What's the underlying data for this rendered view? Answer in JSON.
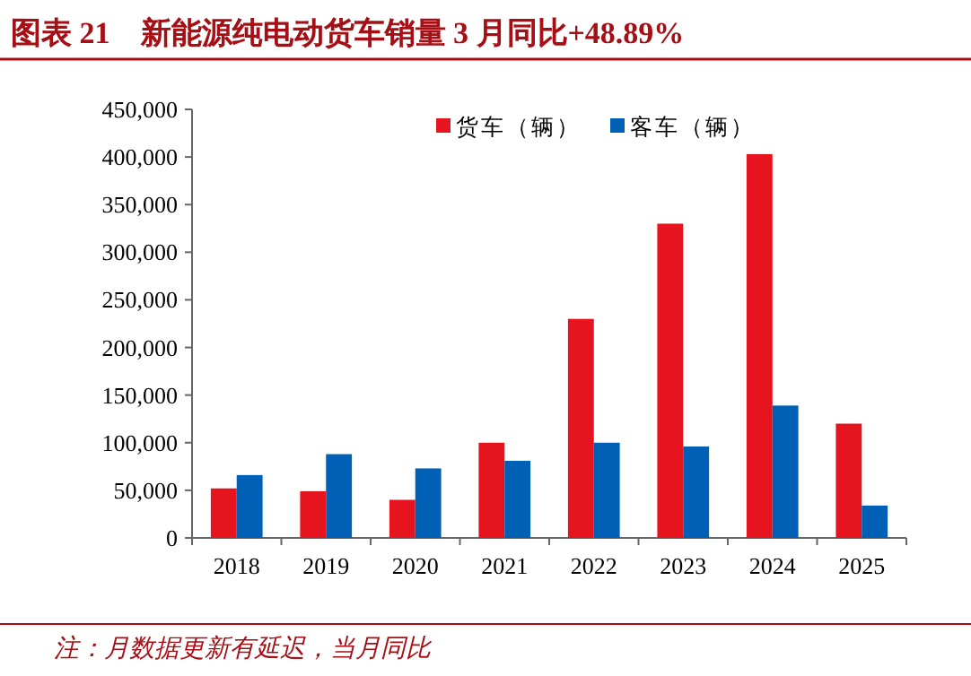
{
  "chart_data": {
    "type": "bar",
    "title": "图表 21　新能源纯电动货车销量 3 月同比+48.89%",
    "categories": [
      "2018",
      "2019",
      "2020",
      "2021",
      "2022",
      "2023",
      "2024",
      "2025"
    ],
    "series": [
      {
        "name": "货车（辆）",
        "color": "#e5141e",
        "values": [
          52000,
          49000,
          40000,
          100000,
          230000,
          330000,
          403000,
          120000
        ]
      },
      {
        "name": "客车（辆）",
        "color": "#0060b6",
        "values": [
          66000,
          88000,
          73000,
          81000,
          100000,
          96000,
          139000,
          34000
        ]
      }
    ],
    "ylim": [
      0,
      450000
    ],
    "yticks": [
      {
        "value": 0,
        "label": "0"
      },
      {
        "value": 50000,
        "label": "50,000"
      },
      {
        "value": 100000,
        "label": "100,000"
      },
      {
        "value": 150000,
        "label": "150,000"
      },
      {
        "value": 200000,
        "label": "200,000"
      },
      {
        "value": 250000,
        "label": "250,000"
      },
      {
        "value": 300000,
        "label": "300,000"
      },
      {
        "value": 350000,
        "label": "350,000"
      },
      {
        "value": 400000,
        "label": "400,000"
      },
      {
        "value": 450000,
        "label": "450,000"
      }
    ],
    "legend": "top",
    "annotations": [
      "注：月数据更新有延迟，当月同比"
    ]
  }
}
